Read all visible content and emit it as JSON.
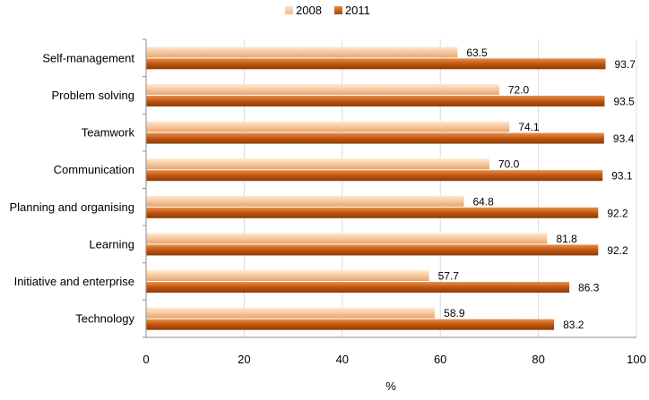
{
  "chart_data": {
    "type": "bar",
    "orientation": "horizontal",
    "categories": [
      "Self-management",
      "Problem solving",
      "Teamwork",
      "Communication",
      "Planning and organising",
      "Learning",
      "Initiative and enterprise",
      "Technology"
    ],
    "series": [
      {
        "name": "2008",
        "values": [
          63.5,
          72.0,
          74.1,
          70.0,
          64.8,
          81.8,
          57.7,
          58.9
        ],
        "color": "#f2bc8c"
      },
      {
        "name": "2011",
        "values": [
          93.7,
          93.5,
          93.4,
          93.1,
          92.2,
          92.2,
          86.3,
          83.2
        ],
        "color": "#c0560f"
      }
    ],
    "value_labels": {
      "2008": [
        "63.5",
        "72.0",
        "74.1",
        "70.0",
        "64.8",
        "81.8",
        "57.7",
        "58.9"
      ],
      "2011": [
        "93.7",
        "93.5",
        "93.4",
        "93.1",
        "92.2",
        "92.2",
        "86.3",
        "83.2"
      ]
    },
    "xticks": [
      "0",
      "20",
      "40",
      "60",
      "80",
      "100"
    ],
    "xlim": [
      0,
      100
    ],
    "xlabel": "%",
    "ylabel": "",
    "title": "",
    "legend_position": "top-center",
    "grid": true
  }
}
